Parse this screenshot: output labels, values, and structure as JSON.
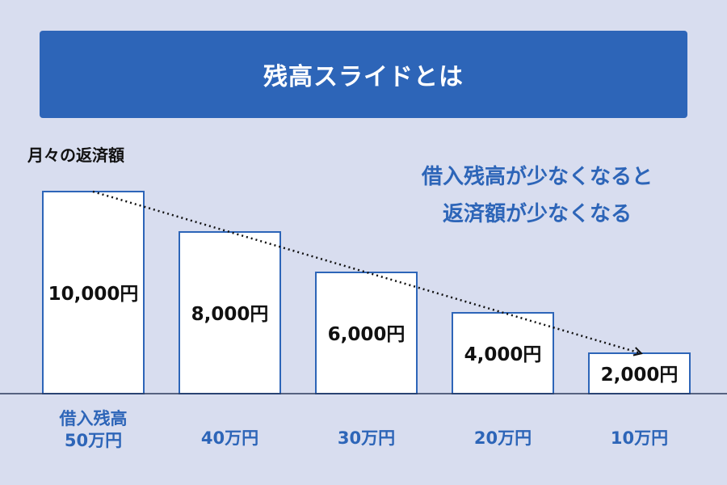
{
  "title": "残高スライドとは",
  "colors": {
    "background": "#d8ddef",
    "accent": "#2d65b8",
    "bar_fill": "#ffffff",
    "text": "#111111"
  },
  "annotation": {
    "line1": "借入残高が少なくなると",
    "line2": "返済額が少なくなる"
  },
  "chart_data": {
    "type": "bar",
    "ylabel": "月々の返済額",
    "categories": [
      [
        "借入残高",
        "50万円"
      ],
      [
        "40万円"
      ],
      [
        "30万円"
      ],
      [
        "20万円"
      ],
      [
        "10万円"
      ]
    ],
    "values": [
      10000,
      8000,
      6000,
      4000,
      2000
    ],
    "value_labels": [
      "10,000円",
      "8,000円",
      "6,000円",
      "4,000円",
      "2,000円"
    ],
    "trend_arrow": "dotted arrow from first bar to last bar",
    "grid": false
  }
}
